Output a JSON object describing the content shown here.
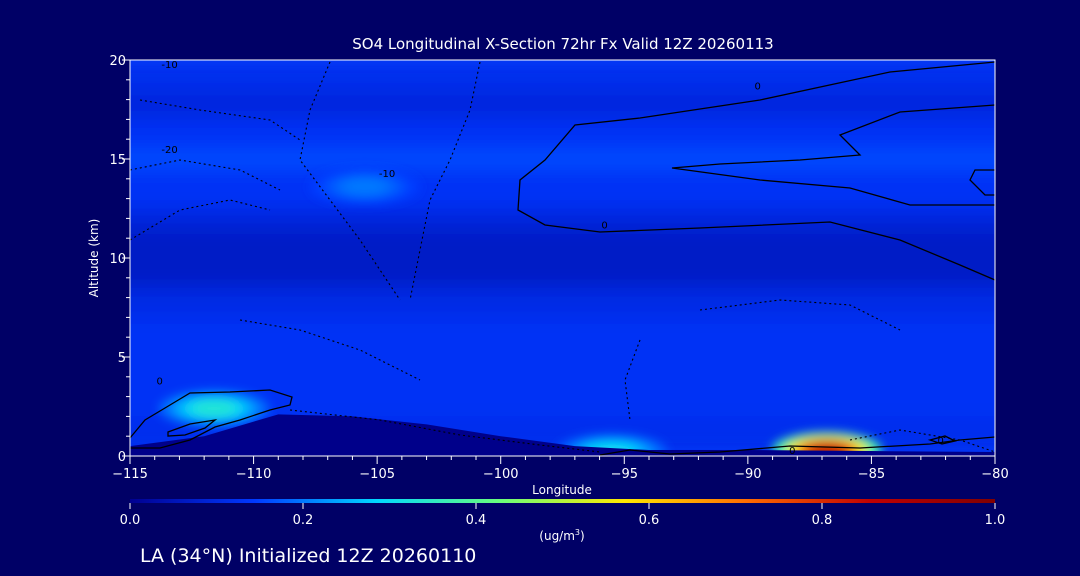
{
  "chart_data": {
    "type": "heatmap",
    "title": "SO4 Longitudinal X-Section 72hr  Fx Valid 12Z 20260113",
    "xlabel": "Longitude",
    "ylabel": "Altitude (km)",
    "xlim": [
      -115,
      -80
    ],
    "ylim": [
      0,
      20
    ],
    "x_ticks": [
      -115,
      -110,
      -105,
      -100,
      -95,
      -90,
      -85,
      -80
    ],
    "x_tick_labels": [
      "−115",
      "−110",
      "−105",
      "−100",
      "−95",
      "−90",
      "−85",
      "−80"
    ],
    "y_ticks": [
      0,
      5,
      10,
      15,
      20
    ],
    "y_tick_labels": [
      "0",
      "5",
      "10",
      "15",
      "20"
    ],
    "background_bands": [
      {
        "alt_min": 0,
        "alt_max": 2,
        "value": 0.12
      },
      {
        "alt_min": 2,
        "alt_max": 7,
        "value": 0.13
      },
      {
        "alt_min": 7,
        "alt_max": 8.5,
        "value": 0.11
      },
      {
        "alt_min": 8.5,
        "alt_max": 11.5,
        "value": 0.07
      },
      {
        "alt_min": 11.5,
        "alt_max": 12.5,
        "value": 0.1
      },
      {
        "alt_min": 12.5,
        "alt_max": 14.5,
        "value": 0.13
      },
      {
        "alt_min": 14.5,
        "alt_max": 15.5,
        "value": 0.16
      },
      {
        "alt_min": 15.5,
        "alt_max": 17,
        "value": 0.13
      },
      {
        "alt_min": 17,
        "alt_max": 18.5,
        "value": 0.1
      },
      {
        "alt_min": 18.5,
        "alt_max": 20,
        "value": 0.12
      }
    ],
    "hotspots": [
      {
        "lon": -111.6,
        "alt": 2.4,
        "value": 0.33
      },
      {
        "lon": -86.8,
        "alt": 0.3,
        "value": 0.85
      },
      {
        "lon": -95.5,
        "alt": 0.2,
        "value": 0.3
      },
      {
        "lon": -105.5,
        "alt": 13.6,
        "value": 0.2
      }
    ],
    "terrain_alt_km": [
      [
        -115,
        0.5
      ],
      [
        -112,
        1.0
      ],
      [
        -109,
        2.1
      ],
      [
        -106,
        2.0
      ],
      [
        -103,
        1.6
      ],
      [
        -100,
        1.0
      ],
      [
        -97,
        0.5
      ],
      [
        -94,
        0.3
      ],
      [
        -90,
        0.3
      ],
      [
        -85,
        0.25
      ],
      [
        -80,
        0.2
      ]
    ],
    "contour_labels": [
      {
        "text": "-10",
        "lon": -113.4,
        "alt": 19.6
      },
      {
        "text": "-20",
        "lon": -113.4,
        "alt": 15.3
      },
      {
        "text": "-10",
        "lon": -104.6,
        "alt": 14.1
      },
      {
        "text": "0",
        "lon": -89.6,
        "alt": 18.5
      },
      {
        "text": "0",
        "lon": -95.8,
        "alt": 11.5
      },
      {
        "text": "0",
        "lon": -82.2,
        "alt": 0.6
      },
      {
        "text": "0",
        "lon": -88.2,
        "alt": 0.1
      },
      {
        "text": "0",
        "lon": -113.8,
        "alt": 3.6
      }
    ],
    "colorbar": {
      "min": 0.0,
      "max": 1.0,
      "ticks": [
        "0.0",
        "0.2",
        "0.4",
        "0.6",
        "0.8",
        "1.0"
      ],
      "units": "(ug/m",
      "units_sup": "3",
      "units_close": ")",
      "colors": [
        "#000090",
        "#0038ff",
        "#00d8ff",
        "#6bff7a",
        "#ffe800",
        "#ff6a00",
        "#c00000",
        "#800000"
      ]
    },
    "footer": "LA (34°N) Initialized 12Z 20260110",
    "grid": false,
    "legend": "colorbar-bottom"
  }
}
